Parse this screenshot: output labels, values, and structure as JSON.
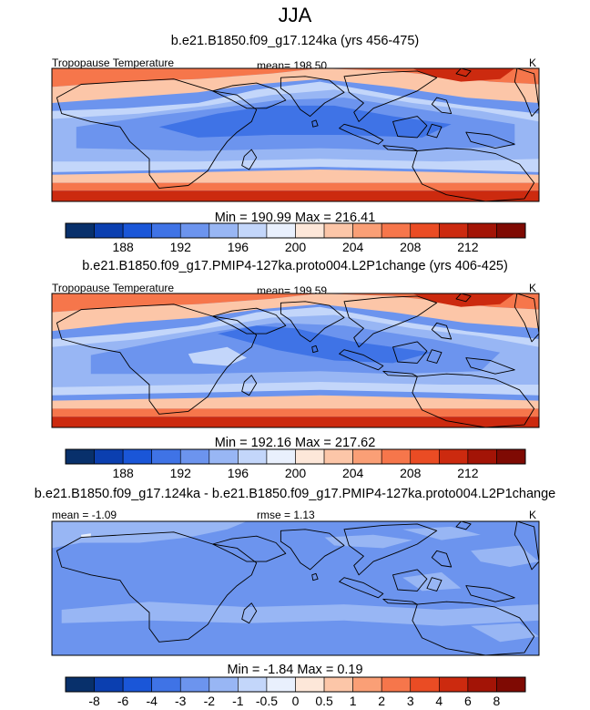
{
  "figure": {
    "season": "JJA"
  },
  "panels": [
    {
      "title": "b.e21.B1850.f09_g17.124ka (yrs 456-475)",
      "left_label": "Tropopause Temperature",
      "center_label": "mean= 198.50",
      "units": "K",
      "minmax": "Min = 190.99 Max = 216.41"
    },
    {
      "title": "b.e21.B1850.f09_g17.PMIP4-127ka.proto004.L2P1change (yrs 406-425)",
      "left_label": "Tropopause Temperature",
      "center_label": "mean= 199.59",
      "units": "K",
      "minmax": "Min = 192.16 Max = 217.62"
    },
    {
      "title": "b.e21.B1850.f09_g17.124ka - b.e21.B1850.f09_g17.PMIP4-127ka.proto004.L2P1change",
      "left_label": "mean =  -1.09",
      "center_label": "rmse =   1.13",
      "units": "K",
      "minmax": "Min =  -1.84 Max =   0.19"
    }
  ],
  "chart_data": [
    {
      "type": "heatmap",
      "title": "b.e21.B1850.f09_g17.124ka (yrs 456-475)",
      "variable": "Tropopause Temperature",
      "units": "K",
      "mean": 198.5,
      "min": 190.99,
      "max": 216.41,
      "colorbar_levels": [
        186,
        188,
        190,
        192,
        194,
        196,
        198,
        200,
        202,
        204,
        206,
        208,
        210,
        212,
        214
      ],
      "colorbar_tick_labels": [
        "188",
        "192",
        "196",
        "200",
        "204",
        "208",
        "212"
      ]
    },
    {
      "type": "heatmap",
      "title": "b.e21.B1850.f09_g17.PMIP4-127ka.proto004.L2P1change (yrs 406-425)",
      "variable": "Tropopause Temperature",
      "units": "K",
      "mean": 199.59,
      "min": 192.16,
      "max": 217.62,
      "colorbar_levels": [
        186,
        188,
        190,
        192,
        194,
        196,
        198,
        200,
        202,
        204,
        206,
        208,
        210,
        212,
        214
      ],
      "colorbar_tick_labels": [
        "188",
        "192",
        "196",
        "200",
        "204",
        "208",
        "212"
      ]
    },
    {
      "type": "heatmap",
      "title": "b.e21.B1850.f09_g17.124ka - b.e21.B1850.f09_g17.PMIP4-127ka.proto004.L2P1change",
      "units": "K",
      "mean": -1.09,
      "rmse": 1.13,
      "min": -1.84,
      "max": 0.19,
      "colorbar_levels": [
        -8,
        -6,
        -4,
        -3,
        -2,
        -1,
        -0.5,
        0,
        0.5,
        1,
        2,
        3,
        4,
        6,
        8
      ],
      "colorbar_tick_labels": [
        "-8",
        "-6",
        "-4",
        "-3",
        "-2",
        "-1",
        "-0.5",
        "0",
        "0.5",
        "1",
        "2",
        "3",
        "4",
        "6",
        "8"
      ]
    }
  ],
  "colors": {
    "palette": [
      "#08306b",
      "#0b3fb0",
      "#1a56d8",
      "#3f73e6",
      "#6c94ee",
      "#98b6f4",
      "#c3d6fa",
      "#e9f0fd",
      "#fde7d9",
      "#fcc6a8",
      "#fa9f76",
      "#f6764b",
      "#ea4c24",
      "#cc2a0f",
      "#a31406",
      "#7f0a03"
    ],
    "land_outline": "#000000",
    "frame": "#000000"
  }
}
